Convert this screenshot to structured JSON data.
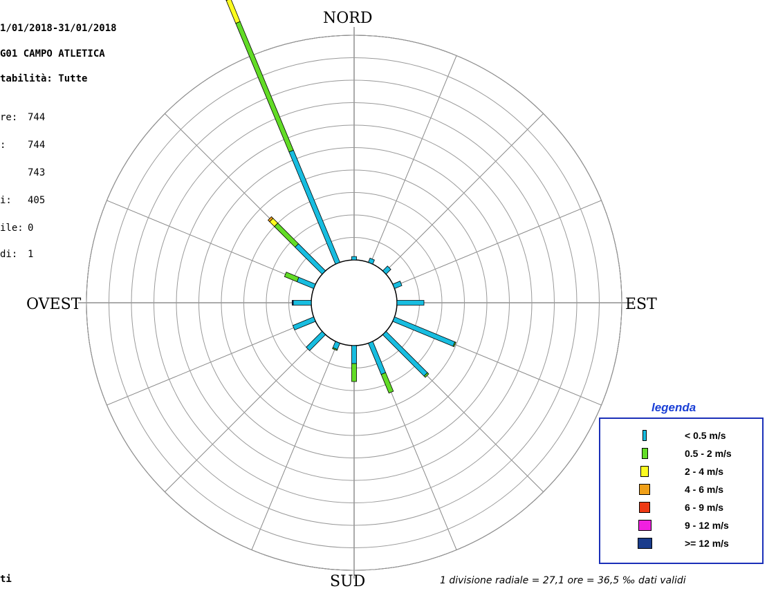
{
  "header": {
    "period": "1/01/2018-31/01/2018",
    "station": "G01 CAMPO ATLETICA",
    "stability": "tabilità: Tutte"
  },
  "stats": [
    {
      "label": "re:",
      "value": "744"
    },
    {
      "label": ":",
      "value": "744"
    },
    {
      "label": "",
      "value": "743"
    },
    {
      "label": "i:",
      "value": "405"
    },
    {
      "label": "ile:",
      "value": "0"
    },
    {
      "label": "di:",
      "value": "1"
    }
  ],
  "bottom_left_text": "ti",
  "chart_data": {
    "type": "wind-rose",
    "directions": [
      "NORD",
      "EST",
      "SUD",
      "OVEST"
    ],
    "sectors_deg": [
      0,
      22.5,
      45,
      67.5,
      90,
      112.5,
      135,
      157.5,
      180,
      202.5,
      225,
      247.5,
      270,
      292.5,
      315,
      337.5
    ],
    "rings": 10,
    "radial_division": "1 divisione radiale = 27,1 ore = 36,5 ‰ dati validi",
    "units": "divisioni radiali",
    "speed_classes": [
      {
        "label": "< 0.5 m/s",
        "color": "#18bde0"
      },
      {
        "label": "0.5 - 2 m/s",
        "color": "#62dc26"
      },
      {
        "label": "2 - 4 m/s",
        "color": "#fcfc20"
      },
      {
        "label": "4 - 6 m/s",
        "color": "#f0a018"
      },
      {
        "label": "6 - 9 m/s",
        "color": "#ee3a14"
      },
      {
        "label": "9 - 12 m/s",
        "color": "#f020e0"
      },
      {
        "label": ">= 12 m/s",
        "color": "#1a3c8c"
      }
    ],
    "series": [
      {
        "direction_deg": 0,
        "values": [
          0.15,
          0,
          0,
          0,
          0,
          0,
          0
        ]
      },
      {
        "direction_deg": 22.5,
        "values": [
          0.2,
          0,
          0,
          0,
          0,
          0,
          0
        ]
      },
      {
        "direction_deg": 45,
        "values": [
          0.3,
          0,
          0,
          0,
          0,
          0,
          0
        ]
      },
      {
        "direction_deg": 67.5,
        "values": [
          0.35,
          0,
          0,
          0,
          0,
          0,
          0
        ]
      },
      {
        "direction_deg": 90,
        "values": [
          1.2,
          0,
          0,
          0,
          0,
          0,
          0
        ]
      },
      {
        "direction_deg": 112.5,
        "values": [
          2.9,
          0.05,
          0,
          0,
          0,
          0,
          0
        ]
      },
      {
        "direction_deg": 135,
        "values": [
          2.6,
          0.08,
          0,
          0,
          0,
          0,
          0
        ]
      },
      {
        "direction_deg": 157.5,
        "values": [
          1.5,
          0.9,
          0,
          0,
          0,
          0,
          0
        ]
      },
      {
        "direction_deg": 180,
        "values": [
          0.8,
          0.8,
          0,
          0,
          0,
          0,
          0
        ]
      },
      {
        "direction_deg": 202.5,
        "values": [
          0.3,
          0.05,
          0,
          0,
          0,
          0,
          0
        ]
      },
      {
        "direction_deg": 225,
        "values": [
          1.0,
          0,
          0,
          0,
          0,
          0,
          0
        ]
      },
      {
        "direction_deg": 247.5,
        "values": [
          1.0,
          0,
          0,
          0,
          0,
          0,
          0
        ]
      },
      {
        "direction_deg": 270,
        "values": [
          0.8,
          0,
          0,
          0,
          0,
          0,
          0.05
        ]
      },
      {
        "direction_deg": 292.5,
        "values": [
          0.8,
          0.6,
          0,
          0,
          0,
          0,
          0
        ]
      },
      {
        "direction_deg": 315,
        "values": [
          1.7,
          1.3,
          0.3,
          0.1,
          0,
          0,
          0
        ]
      },
      {
        "direction_deg": 337.5,
        "values": [
          5.4,
          6.2,
          1.1,
          0.2,
          0,
          0,
          0
        ]
      }
    ]
  }
}
